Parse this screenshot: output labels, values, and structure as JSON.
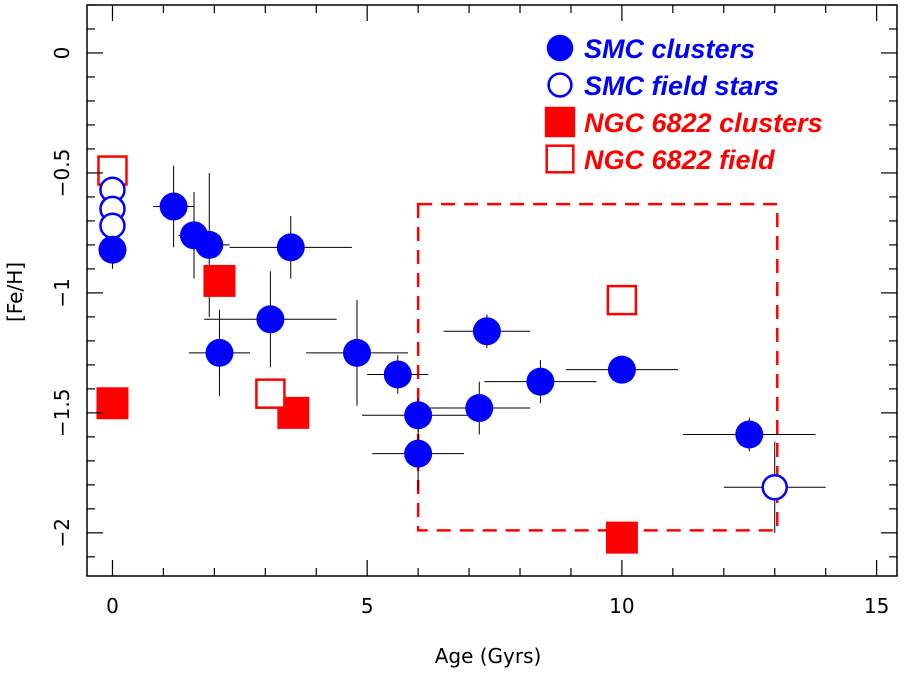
{
  "chart_data": {
    "type": "scatter",
    "title": "",
    "xlabel": "Age (Gyrs)",
    "ylabel": "[Fe/H]",
    "xlim": [
      -0.5,
      15.4
    ],
    "ylim": [
      -2.18,
      0.2
    ],
    "x_ticks": [
      0,
      5,
      10,
      15
    ],
    "x_tick_labels": [
      "0",
      "5",
      "10",
      "15"
    ],
    "y_ticks": [
      0,
      -0.5,
      -1,
      -1.5,
      -2
    ],
    "y_tick_labels": [
      "0",
      "−0.5",
      "−1",
      "−1.5",
      "−2"
    ],
    "grid": false,
    "legend_position": "top-right",
    "colors": {
      "smc": "#0000ff",
      "ngc": "#ff0000",
      "errorbar": "#000000"
    },
    "series": [
      {
        "name": "SMC clusters",
        "marker": "filled-circle",
        "color": "#0000ff",
        "points": [
          {
            "x": 0.0,
            "y": -0.82,
            "xerr": 0.0,
            "yerr": 0.08
          },
          {
            "x": 1.2,
            "y": -0.64,
            "xerr": 0.4,
            "yerr": 0.17
          },
          {
            "x": 1.6,
            "y": -0.76,
            "xerr": 0.3,
            "yerr": 0.18
          },
          {
            "x": 1.9,
            "y": -0.8,
            "xerr": 0.4,
            "yerr": 0.3
          },
          {
            "x": 2.1,
            "y": -1.25,
            "xerr": 0.6,
            "yerr": 0.18
          },
          {
            "x": 3.1,
            "y": -1.11,
            "xerr": 1.3,
            "yerr": 0.2
          },
          {
            "x": 3.5,
            "y": -0.81,
            "xerr": 1.2,
            "yerr": 0.13
          },
          {
            "x": 4.8,
            "y": -1.25,
            "xerr": 1.0,
            "yerr": 0.22
          },
          {
            "x": 5.6,
            "y": -1.34,
            "xerr": 0.6,
            "yerr": 0.08
          },
          {
            "x": 6.0,
            "y": -1.51,
            "xerr": 1.1,
            "yerr": 0.07
          },
          {
            "x": 6.0,
            "y": -1.67,
            "xerr": 0.9,
            "yerr": 0.15
          },
          {
            "x": 7.2,
            "y": -1.48,
            "xerr": 1.0,
            "yerr": 0.11
          },
          {
            "x": 7.35,
            "y": -1.16,
            "xerr": 0.85,
            "yerr": 0.07
          },
          {
            "x": 8.4,
            "y": -1.37,
            "xerr": 1.1,
            "yerr": 0.09
          },
          {
            "x": 10.0,
            "y": -1.32,
            "xerr": 1.1,
            "yerr": 0.05
          },
          {
            "x": 12.5,
            "y": -1.59,
            "xerr": 1.3,
            "yerr": 0.07
          }
        ]
      },
      {
        "name": "SMC field stars",
        "marker": "open-circle",
        "color": "#0000ff",
        "points": [
          {
            "x": 0.0,
            "y": -0.57,
            "xerr": 0.0,
            "yerr": 0.0
          },
          {
            "x": 0.0,
            "y": -0.65,
            "xerr": 0.0,
            "yerr": 0.0
          },
          {
            "x": 0.0,
            "y": -0.72,
            "xerr": 0.0,
            "yerr": 0.0
          },
          {
            "x": 13.0,
            "y": -1.81,
            "xerr": 1.0,
            "yerr": 0.19
          }
        ]
      },
      {
        "name": "NGC 6822 clusters",
        "marker": "filled-square",
        "color": "#ff0000",
        "points": [
          {
            "x": 0.0,
            "y": -1.46
          },
          {
            "x": 2.1,
            "y": -0.95
          },
          {
            "x": 3.55,
            "y": -1.5
          },
          {
            "x": 10.0,
            "y": -2.02
          }
        ]
      },
      {
        "name": "NGC 6822 field",
        "marker": "open-square",
        "color": "#ff0000",
        "points": [
          {
            "x": 0.0,
            "y": -0.49
          },
          {
            "x": 3.1,
            "y": -1.42
          },
          {
            "x": 10.0,
            "y": -1.03
          }
        ]
      }
    ],
    "annotations": [
      {
        "type": "dashed-rectangle",
        "color": "#ff0000",
        "x": [
          6.0,
          13.05
        ],
        "y": [
          -1.99,
          -0.63
        ]
      }
    ]
  }
}
